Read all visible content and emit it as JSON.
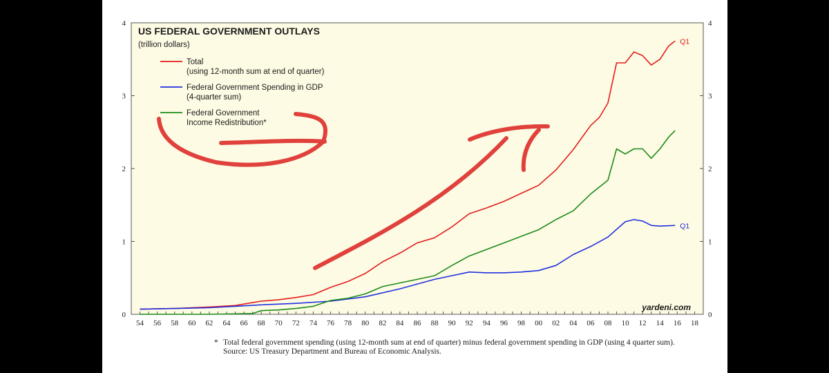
{
  "chart_data": {
    "type": "line",
    "title": "US FEDERAL GOVERNMENT OUTLAYS",
    "subtitle": "(trillion dollars)",
    "source_mark": "yardeni.com",
    "footnote_mark": "*",
    "footnote": "Total federal government spending (using 12-month sum at end of quarter) minus federal government spending in GDP (using 4 quarter sum).",
    "source": "Source: US Treasury Department and Bureau of Economic Analysis.",
    "x_ticks": [
      "54",
      "56",
      "58",
      "60",
      "62",
      "64",
      "66",
      "68",
      "70",
      "72",
      "74",
      "76",
      "78",
      "80",
      "82",
      "84",
      "86",
      "88",
      "90",
      "92",
      "94",
      "96",
      "98",
      "00",
      "02",
      "04",
      "06",
      "08",
      "10",
      "12",
      "14",
      "16",
      "18"
    ],
    "xlim": [
      1953,
      2019
    ],
    "ylim": [
      0,
      4
    ],
    "y_ticks": [
      "0",
      "1",
      "2",
      "3",
      "4"
    ],
    "grid": false,
    "legend_position": "top-left",
    "series": [
      {
        "name": "Total",
        "name_line2": "(using 12-month sum at end of quarter)",
        "color": "#e31b1b",
        "end_label": "Q1",
        "points": [
          [
            1954,
            0.07
          ],
          [
            1958,
            0.08
          ],
          [
            1962,
            0.1
          ],
          [
            1965,
            0.12
          ],
          [
            1967,
            0.16
          ],
          [
            1968,
            0.18
          ],
          [
            1970,
            0.2
          ],
          [
            1972,
            0.23
          ],
          [
            1974,
            0.27
          ],
          [
            1976,
            0.37
          ],
          [
            1978,
            0.45
          ],
          [
            1980,
            0.56
          ],
          [
            1982,
            0.72
          ],
          [
            1984,
            0.84
          ],
          [
            1986,
            0.98
          ],
          [
            1988,
            1.05
          ],
          [
            1990,
            1.2
          ],
          [
            1992,
            1.38
          ],
          [
            1994,
            1.46
          ],
          [
            1996,
            1.55
          ],
          [
            1998,
            1.66
          ],
          [
            2000,
            1.77
          ],
          [
            2002,
            1.98
          ],
          [
            2004,
            2.26
          ],
          [
            2006,
            2.59
          ],
          [
            2007,
            2.7
          ],
          [
            2008,
            2.9
          ],
          [
            2009,
            3.45
          ],
          [
            2010,
            3.45
          ],
          [
            2011,
            3.6
          ],
          [
            2012,
            3.55
          ],
          [
            2013,
            3.42
          ],
          [
            2014,
            3.5
          ],
          [
            2015,
            3.68
          ],
          [
            2015.75,
            3.75
          ]
        ]
      },
      {
        "name": "Federal Government Spending in GDP",
        "name_line2": "(4-quarter sum)",
        "color": "#1f2fe0",
        "end_label": "Q1",
        "points": [
          [
            1954,
            0.07
          ],
          [
            1958,
            0.08
          ],
          [
            1962,
            0.09
          ],
          [
            1965,
            0.11
          ],
          [
            1968,
            0.13
          ],
          [
            1972,
            0.15
          ],
          [
            1976,
            0.18
          ],
          [
            1980,
            0.24
          ],
          [
            1984,
            0.35
          ],
          [
            1988,
            0.48
          ],
          [
            1990,
            0.53
          ],
          [
            1992,
            0.58
          ],
          [
            1994,
            0.57
          ],
          [
            1996,
            0.57
          ],
          [
            1998,
            0.58
          ],
          [
            2000,
            0.6
          ],
          [
            2002,
            0.67
          ],
          [
            2004,
            0.82
          ],
          [
            2006,
            0.93
          ],
          [
            2008,
            1.06
          ],
          [
            2010,
            1.27
          ],
          [
            2011,
            1.3
          ],
          [
            2012,
            1.28
          ],
          [
            2013,
            1.22
          ],
          [
            2014,
            1.21
          ],
          [
            2015.75,
            1.22
          ]
        ]
      },
      {
        "name": "Federal Government",
        "name_line2": "Income Redistribution*",
        "color": "#1a8a1a",
        "end_label": "",
        "points": [
          [
            1954,
            0.0
          ],
          [
            1962,
            0.0
          ],
          [
            1967,
            0.01
          ],
          [
            1968,
            0.05
          ],
          [
            1970,
            0.06
          ],
          [
            1972,
            0.08
          ],
          [
            1974,
            0.11
          ],
          [
            1976,
            0.19
          ],
          [
            1978,
            0.22
          ],
          [
            1980,
            0.28
          ],
          [
            1982,
            0.38
          ],
          [
            1984,
            0.43
          ],
          [
            1986,
            0.48
          ],
          [
            1988,
            0.53
          ],
          [
            1990,
            0.67
          ],
          [
            1992,
            0.8
          ],
          [
            1994,
            0.89
          ],
          [
            1996,
            0.98
          ],
          [
            1998,
            1.07
          ],
          [
            2000,
            1.16
          ],
          [
            2002,
            1.3
          ],
          [
            2004,
            1.42
          ],
          [
            2006,
            1.65
          ],
          [
            2008,
            1.84
          ],
          [
            2009,
            2.27
          ],
          [
            2010,
            2.2
          ],
          [
            2011,
            2.27
          ],
          [
            2012,
            2.27
          ],
          [
            2013,
            2.14
          ],
          [
            2014,
            2.27
          ],
          [
            2015,
            2.43
          ],
          [
            2015.75,
            2.52
          ]
        ]
      }
    ],
    "annotations": [
      {
        "type": "handdrawn-ellipse",
        "color": "#e0413c",
        "target": "Federal Government Income Redistribution* legend entry"
      },
      {
        "type": "handdrawn-arrow",
        "color": "#e0413c",
        "direction": "up-right"
      }
    ]
  }
}
